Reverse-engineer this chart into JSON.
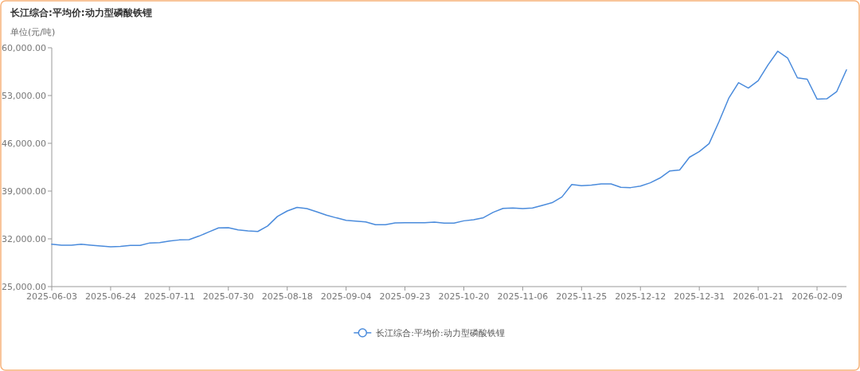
{
  "chart_data": {
    "type": "line",
    "title": "长江综合:平均价:动力型磷酸铁锂",
    "ylabel": "单位(元/吨)",
    "categories": [
      "2025-06-03",
      null,
      null,
      null,
      null,
      null,
      "2025-06-24",
      null,
      null,
      null,
      null,
      null,
      "2025-07-11",
      null,
      null,
      null,
      null,
      null,
      "2025-07-30",
      null,
      null,
      null,
      null,
      null,
      "2025-08-18",
      null,
      null,
      null,
      null,
      null,
      "2025-09-04",
      null,
      null,
      null,
      null,
      null,
      "2025-09-23",
      null,
      null,
      null,
      null,
      null,
      "2025-10-20",
      null,
      null,
      null,
      null,
      null,
      "2025-11-06",
      null,
      null,
      null,
      null,
      null,
      "2025-11-25",
      null,
      null,
      null,
      null,
      null,
      "2025-12-12",
      null,
      null,
      null,
      null,
      null,
      "2025-12-31",
      null,
      null,
      null,
      null,
      null,
      "2026-01-21",
      null,
      null,
      null,
      null,
      null,
      "2026-02-09",
      null,
      null,
      null
    ],
    "series": [
      {
        "name": "长江综合:平均价:动力型磷酸铁锂",
        "color": "#4a8bdc",
        "values": [
          31200,
          31080,
          31080,
          31200,
          31080,
          30960,
          30840,
          30880,
          31040,
          31040,
          31400,
          31440,
          31680,
          31840,
          31880,
          32400,
          33000,
          33600,
          33640,
          33320,
          33160,
          33080,
          33880,
          35280,
          36080,
          36600,
          36440,
          35960,
          35480,
          35080,
          34720,
          34600,
          34480,
          34080,
          34080,
          34320,
          34360,
          34360,
          34360,
          34440,
          34310,
          34310,
          34640,
          34810,
          35100,
          35890,
          36470,
          36510,
          36430,
          36510,
          36890,
          37300,
          38140,
          39970,
          39800,
          39880,
          40050,
          40050,
          39550,
          39510,
          39720,
          40210,
          40920,
          41960,
          42090,
          43960,
          44790,
          45950,
          49150,
          52600,
          54890,
          54100,
          55180,
          57470,
          59500,
          58510,
          55600,
          55390,
          52480,
          52520,
          53560,
          56760
        ]
      }
    ],
    "ylim": [
      25000,
      60000
    ],
    "yticks": [
      {
        "value": 25000,
        "label": "25,000.00"
      },
      {
        "value": 32000,
        "label": "32,000.00"
      },
      {
        "value": 39000,
        "label": "39,000.00"
      },
      {
        "value": 46000,
        "label": "46,000.00"
      },
      {
        "value": 53000,
        "label": "53,000.00"
      },
      {
        "value": 60000,
        "label": "60,000.00"
      }
    ],
    "grid": false,
    "legend": "bottom"
  }
}
